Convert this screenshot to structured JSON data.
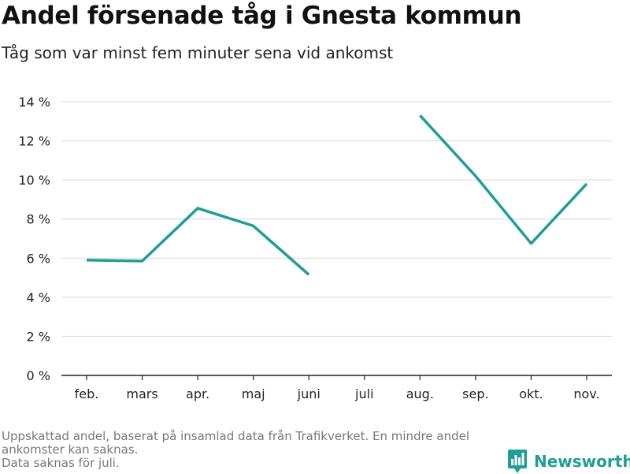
{
  "header": {
    "title": "Andel försenade tåg i Gnesta kommun",
    "subtitle": "Tåg som var minst fem minuter sena vid ankomst"
  },
  "footer": {
    "note_line1": "Uppskattad andel, baserat på insamlad data från Trafikverket. En mindre andel ankomster kan saknas.",
    "note_line2": "Data saknas för juli.",
    "brand_name": "Newsworthy",
    "brand_icon": "bar-chart-logo-icon",
    "brand_color": "#1f9e96"
  },
  "chart_data": {
    "type": "line",
    "categories": [
      "feb.",
      "mars",
      "apr.",
      "maj",
      "juni",
      "juli",
      "aug.",
      "sep.",
      "okt.",
      "nov."
    ],
    "series": [
      {
        "values": [
          5.9,
          5.85,
          8.55,
          7.65,
          5.15,
          null,
          13.3,
          10.2,
          6.75,
          9.8
        ]
      }
    ],
    "y_ticks": [
      0,
      2,
      4,
      6,
      8,
      10,
      12,
      14
    ],
    "y_tick_labels": [
      "0 %",
      "2 %",
      "4 %",
      "6 %",
      "8 %",
      "10 %",
      "12 %",
      "14 %"
    ],
    "ylim": [
      0,
      14
    ],
    "grid": true,
    "line_color": "#1f9e96"
  }
}
